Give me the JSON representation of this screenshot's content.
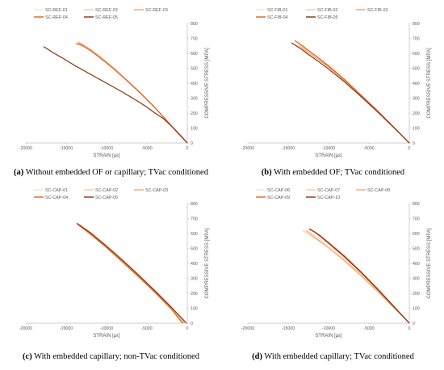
{
  "captions": [
    {
      "label": "(a)",
      "text": " Without embedded OF or capillary; TVac conditioned"
    },
    {
      "label": "(b)",
      "text": " With embedded OF; TVac conditioned"
    },
    {
      "label": "(c)",
      "text": " With embedded capillary; non-TVac conditioned"
    },
    {
      "label": "(d)",
      "text": " With embedded capillary; TVac conditioned"
    }
  ],
  "chart_data": [
    {
      "type": "line",
      "xlabel": "STRAIN [με]",
      "ylabel": "COMPRESSIVE STRESS [MPA]",
      "xlim": [
        -20000,
        0
      ],
      "ylim": [
        0,
        800
      ],
      "xticks": [
        "-20000",
        "-15000",
        "-10000",
        "-5000",
        "0"
      ],
      "yticks": [
        "0",
        "100",
        "200",
        "300",
        "400",
        "500",
        "600",
        "700",
        "800"
      ],
      "legend_position": "top",
      "series": [
        {
          "name": "SC-REF-01",
          "color": "#fbe3cf",
          "x": [
            0,
            -1000,
            -2000,
            -3000,
            -4000,
            -5000,
            -6000,
            -7000,
            -8000,
            -9000,
            -10000,
            -11000,
            -12000,
            -13000,
            -13400
          ],
          "y": [
            0,
            55,
            115,
            175,
            235,
            290,
            345,
            395,
            445,
            495,
            540,
            585,
            625,
            660,
            675
          ]
        },
        {
          "name": "SC-REF-02",
          "color": "#f8c8a4",
          "x": [
            0,
            -1000,
            -2000,
            -3000,
            -4000,
            -5000,
            -6000,
            -7000,
            -8000,
            -9000,
            -10000,
            -11000,
            -12000,
            -13000,
            -13500
          ],
          "y": [
            0,
            57,
            117,
            177,
            237,
            292,
            347,
            398,
            448,
            498,
            543,
            588,
            628,
            663,
            678
          ]
        },
        {
          "name": "SC-REF-03",
          "color": "#f4a770",
          "x": [
            0,
            -1000,
            -2000,
            -3000,
            -4000,
            -5000,
            -6000,
            -7000,
            -8000,
            -9000,
            -10000,
            -11000,
            -12000,
            -13000,
            -13600
          ],
          "y": [
            0,
            58,
            118,
            178,
            238,
            292,
            346,
            396,
            445,
            494,
            540,
            584,
            624,
            658,
            672
          ]
        },
        {
          "name": "SC-REF-04",
          "color": "#e0611f",
          "x": [
            0,
            -1000,
            -2000,
            -3000,
            -4000,
            -5000,
            -6000,
            -7000,
            -8000,
            -9000,
            -10000,
            -11000,
            -12000,
            -13000,
            -13800
          ],
          "y": [
            0,
            56,
            116,
            176,
            236,
            290,
            343,
            393,
            442,
            490,
            535,
            578,
            618,
            652,
            665
          ]
        },
        {
          "name": "SC-REF-05",
          "color": "#8a3010",
          "x": [
            0,
            -1000,
            -2000,
            -3000,
            -4000,
            -5000,
            -6000,
            -8000,
            -10000,
            -12000,
            -14000,
            -15500,
            -16500,
            -17200,
            -17800
          ],
          "y": [
            0,
            60,
            115,
            165,
            200,
            240,
            275,
            340,
            400,
            460,
            520,
            570,
            600,
            625,
            645
          ]
        }
      ]
    },
    {
      "type": "line",
      "xlabel": "STRAIN [με]",
      "ylabel": "COMPRESSIVE STRESS [MPA]",
      "xlim": [
        -20000,
        0
      ],
      "ylim": [
        0,
        800
      ],
      "xticks": [
        "-20000",
        "-15000",
        "-10000",
        "-5000",
        "0"
      ],
      "yticks": [
        "0",
        "100",
        "200",
        "300",
        "400",
        "500",
        "600",
        "700",
        "800"
      ],
      "legend_position": "top",
      "series": [
        {
          "name": "SC-FIB-01",
          "color": "#fbe3cf",
          "x": [
            0,
            -2000,
            -4000,
            -6000,
            -8000,
            -10000,
            -11500,
            -12500,
            -13500
          ],
          "y": [
            0,
            110,
            220,
            320,
            420,
            510,
            570,
            610,
            650
          ]
        },
        {
          "name": "SC-FIB-02",
          "color": "#f8c8a4",
          "x": [
            0,
            -2000,
            -4000,
            -6000,
            -8000,
            -10000,
            -11500,
            -12500,
            -13200
          ],
          "y": [
            0,
            112,
            222,
            325,
            428,
            520,
            580,
            620,
            655
          ]
        },
        {
          "name": "SC-FIB-03",
          "color": "#f4a770",
          "x": [
            0,
            -2000,
            -4000,
            -6000,
            -8000,
            -10000,
            -11500,
            -12800,
            -13800
          ],
          "y": [
            0,
            108,
            215,
            318,
            418,
            508,
            568,
            615,
            660
          ]
        },
        {
          "name": "SC-FIB-04",
          "color": "#e0611f",
          "x": [
            0,
            -2000,
            -4000,
            -6000,
            -8000,
            -10000,
            -11500,
            -12800,
            -13600,
            -14200
          ],
          "y": [
            0,
            110,
            218,
            320,
            422,
            515,
            580,
            630,
            665,
            685
          ]
        },
        {
          "name": "SC-FIB-05",
          "color": "#8a3010",
          "x": [
            0,
            -2000,
            -4000,
            -6000,
            -8000,
            -10000,
            -11500,
            -12700,
            -13400,
            -14600
          ],
          "y": [
            0,
            108,
            212,
            312,
            408,
            495,
            555,
            600,
            630,
            670
          ]
        }
      ]
    },
    {
      "type": "line",
      "xlabel": "STRAIN [με]",
      "ylabel": "COMPRESSIVE STRESS [MPA]",
      "xlim": [
        -20000,
        0
      ],
      "ylim": [
        0,
        800
      ],
      "xticks": [
        "-20000",
        "-15000",
        "-10000",
        "-5000",
        "0"
      ],
      "yticks": [
        "0",
        "100",
        "200",
        "300",
        "400",
        "500",
        "600",
        "700",
        "800"
      ],
      "legend_position": "top",
      "series": [
        {
          "name": "SC-CAP-01",
          "color": "#fbe3cf",
          "x": [
            -200,
            -2000,
            -4000,
            -6000,
            -8000,
            -10000,
            -12000,
            -13300
          ],
          "y": [
            0,
            110,
            220,
            325,
            425,
            520,
            610,
            665
          ]
        },
        {
          "name": "SC-CAP-02",
          "color": "#f8c8a4",
          "x": [
            -300,
            -2000,
            -4000,
            -6000,
            -8000,
            -10000,
            -12000,
            -13500
          ],
          "y": [
            0,
            105,
            215,
            318,
            418,
            512,
            602,
            660
          ]
        },
        {
          "name": "SC-CAP-03",
          "color": "#f4a770",
          "x": [
            -400,
            -2000,
            -4000,
            -6000,
            -8000,
            -10000,
            -12000,
            -13400
          ],
          "y": [
            0,
            100,
            210,
            312,
            412,
            508,
            598,
            658
          ]
        },
        {
          "name": "SC-CAP-04",
          "color": "#e0611f",
          "x": [
            -600,
            -2000,
            -4000,
            -6000,
            -8000,
            -10000,
            -12000,
            -13600
          ],
          "y": [
            0,
            95,
            205,
            308,
            408,
            505,
            596,
            662
          ]
        },
        {
          "name": "SC-CAP-05",
          "color": "#8a3010",
          "x": [
            -100,
            -2000,
            -4000,
            -6000,
            -8000,
            -10000,
            -12000,
            -13700
          ],
          "y": [
            0,
            108,
            216,
            320,
            420,
            515,
            605,
            668
          ]
        }
      ]
    },
    {
      "type": "line",
      "xlabel": "STRAIN [με]",
      "ylabel": "COMPRESSIVE STRESS [MPA]",
      "xlim": [
        -20000,
        0
      ],
      "ylim": [
        0,
        800
      ],
      "xticks": [
        "-20000",
        "-15000",
        "-10000",
        "-5000",
        "0"
      ],
      "yticks": [
        "0",
        "100",
        "200",
        "300",
        "400",
        "500",
        "600",
        "700",
        "800"
      ],
      "legend_position": "top",
      "series": [
        {
          "name": "SC-CAP-06",
          "color": "#fbe3cf",
          "x": [
            0,
            -2000,
            -4000,
            -6000,
            -8000,
            -10000,
            -11500,
            -12500
          ],
          "y": [
            0,
            112,
            225,
            330,
            430,
            520,
            585,
            620
          ]
        },
        {
          "name": "SC-CAP-07",
          "color": "#f8c8a4",
          "x": [
            0,
            -2000,
            -4000,
            -6000,
            -8000,
            -10000,
            -11500,
            -12500,
            -13200
          ],
          "y": [
            0,
            110,
            220,
            322,
            420,
            505,
            560,
            595,
            620
          ]
        },
        {
          "name": "SC-CAP-08",
          "color": "#f4a770",
          "x": [
            0,
            -2000,
            -4000,
            -6000,
            -8000,
            -10000,
            -11500,
            -12800
          ],
          "y": [
            0,
            108,
            216,
            318,
            415,
            505,
            568,
            620
          ]
        },
        {
          "name": "SC-CAP-09",
          "color": "#e0611f",
          "x": [
            0,
            -2000,
            -4000,
            -6000,
            -8000,
            -10000,
            -11000,
            -12000,
            -12300
          ],
          "y": [
            0,
            118,
            235,
            345,
            448,
            540,
            585,
            620,
            630
          ]
        },
        {
          "name": "SC-CAP-10",
          "color": "#8a3010",
          "x": [
            0,
            -2000,
            -4000,
            -6000,
            -8000,
            -10000,
            -11000,
            -11800,
            -12400
          ],
          "y": [
            0,
            115,
            230,
            340,
            442,
            535,
            580,
            612,
            630
          ]
        }
      ]
    }
  ]
}
